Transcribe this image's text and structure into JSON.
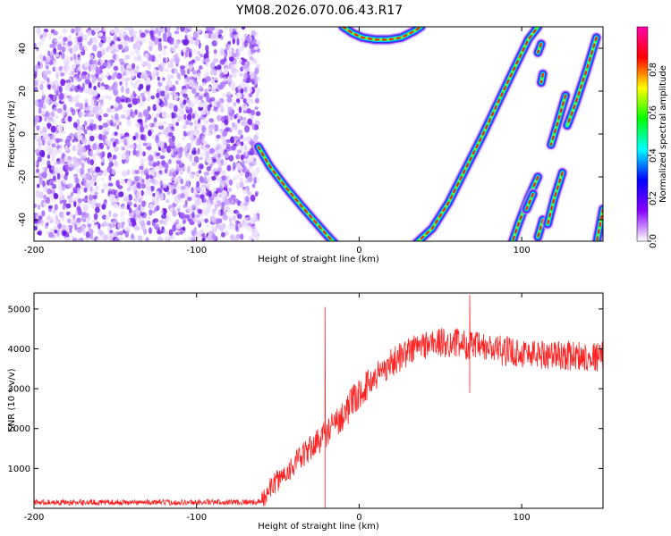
{
  "title": "YM08.2026.070.06.43.R17",
  "chart_data": [
    {
      "type": "heatmap",
      "xlabel": "Height of straight line (km)",
      "ylabel": "Frequency (Hz)",
      "xlim": [
        -200,
        150
      ],
      "ylim": [
        -50,
        50
      ],
      "xticks": [
        -200,
        -100,
        0,
        100
      ],
      "yticks": [
        -40,
        -20,
        0,
        20,
        40
      ],
      "colorbar": {
        "label": "Normalized spectral amplitude",
        "range": [
          0,
          1
        ],
        "ticks": [
          "0.0",
          "0.2",
          "0.4",
          "0.6",
          "0.8"
        ],
        "colormap": [
          "#ffffff",
          "#8800ff",
          "#0000ff",
          "#00ffff",
          "#00ff00",
          "#ffff00",
          "#ff0000",
          "#ff00aa"
        ]
      },
      "noise_region": {
        "x": [
          -200,
          -62
        ],
        "y": [
          -50,
          50
        ]
      },
      "curves": [
        {
          "points": [
            [
              -62,
              -6
            ],
            [
              -55,
              -15
            ],
            [
              -45,
              -25
            ],
            [
              -35,
              -34
            ],
            [
              -27,
              -41
            ],
            [
              -20,
              -47
            ],
            [
              -15,
              -51
            ]
          ]
        },
        {
          "points": [
            [
              35,
              -51
            ],
            [
              45,
              -44
            ],
            [
              55,
              -32
            ],
            [
              65,
              -17
            ],
            [
              75,
              -2
            ],
            [
              85,
              14
            ],
            [
              95,
              30
            ],
            [
              104,
              44
            ],
            [
              110,
              50
            ]
          ]
        },
        {
          "points": [
            [
              -10,
              50
            ],
            [
              -4,
              47
            ],
            [
              2,
              45
            ],
            [
              10,
              44
            ],
            [
              18,
              44
            ],
            [
              26,
              45
            ],
            [
              34,
              48
            ],
            [
              38,
              50
            ]
          ]
        },
        {
          "points": [
            [
              112,
              42
            ],
            [
              110,
              38
            ]
          ]
        },
        {
          "points": [
            [
              113,
              28
            ],
            [
              112,
              24
            ]
          ]
        },
        {
          "points": [
            [
              127,
              18
            ],
            [
              122,
              5
            ],
            [
              118,
              -5
            ]
          ]
        },
        {
          "points": [
            [
              146,
              45
            ],
            [
              140,
              30
            ],
            [
              133,
              14
            ],
            [
              128,
              4
            ]
          ]
        },
        {
          "points": [
            [
              110,
              -20
            ],
            [
              104,
              -30
            ],
            [
              98,
              -42
            ],
            [
              94,
              -51
            ]
          ]
        },
        {
          "points": [
            [
              107,
              -28
            ],
            [
              103,
              -35
            ]
          ]
        },
        {
          "points": [
            [
              113,
              -40
            ],
            [
              110,
              -48
            ]
          ]
        },
        {
          "points": [
            [
              125,
              -18
            ],
            [
              120,
              -30
            ],
            [
              116,
              -42
            ]
          ]
        },
        {
          "points": [
            [
              150,
              -35
            ],
            [
              146,
              -51
            ]
          ]
        }
      ]
    },
    {
      "type": "line",
      "xlabel": "Height of straight line (km)",
      "ylabel": "SNR (10 * v/v)",
      "xlim": [
        -200,
        150
      ],
      "ylim": [
        0,
        5400
      ],
      "xticks": [
        -200,
        -100,
        0,
        100
      ],
      "yticks": [
        1000,
        2000,
        3000,
        4000,
        5000
      ],
      "color": "#ff2222",
      "envelope": [
        [
          -200,
          150
        ],
        [
          -100,
          150
        ],
        [
          -60,
          160
        ],
        [
          -55,
          500
        ],
        [
          -45,
          900
        ],
        [
          -35,
          1300
        ],
        [
          -25,
          1700
        ],
        [
          -15,
          2100
        ],
        [
          -5,
          2600
        ],
        [
          5,
          3100
        ],
        [
          15,
          3500
        ],
        [
          25,
          3800
        ],
        [
          35,
          4050
        ],
        [
          45,
          4150
        ],
        [
          60,
          4150
        ],
        [
          80,
          4000
        ],
        [
          100,
          3900
        ],
        [
          120,
          3850
        ],
        [
          150,
          3800
        ]
      ],
      "spikes": [
        [
          -21,
          5050
        ],
        [
          -21,
          0
        ],
        [
          68,
          5350
        ],
        [
          68,
          2900
        ]
      ]
    }
  ]
}
